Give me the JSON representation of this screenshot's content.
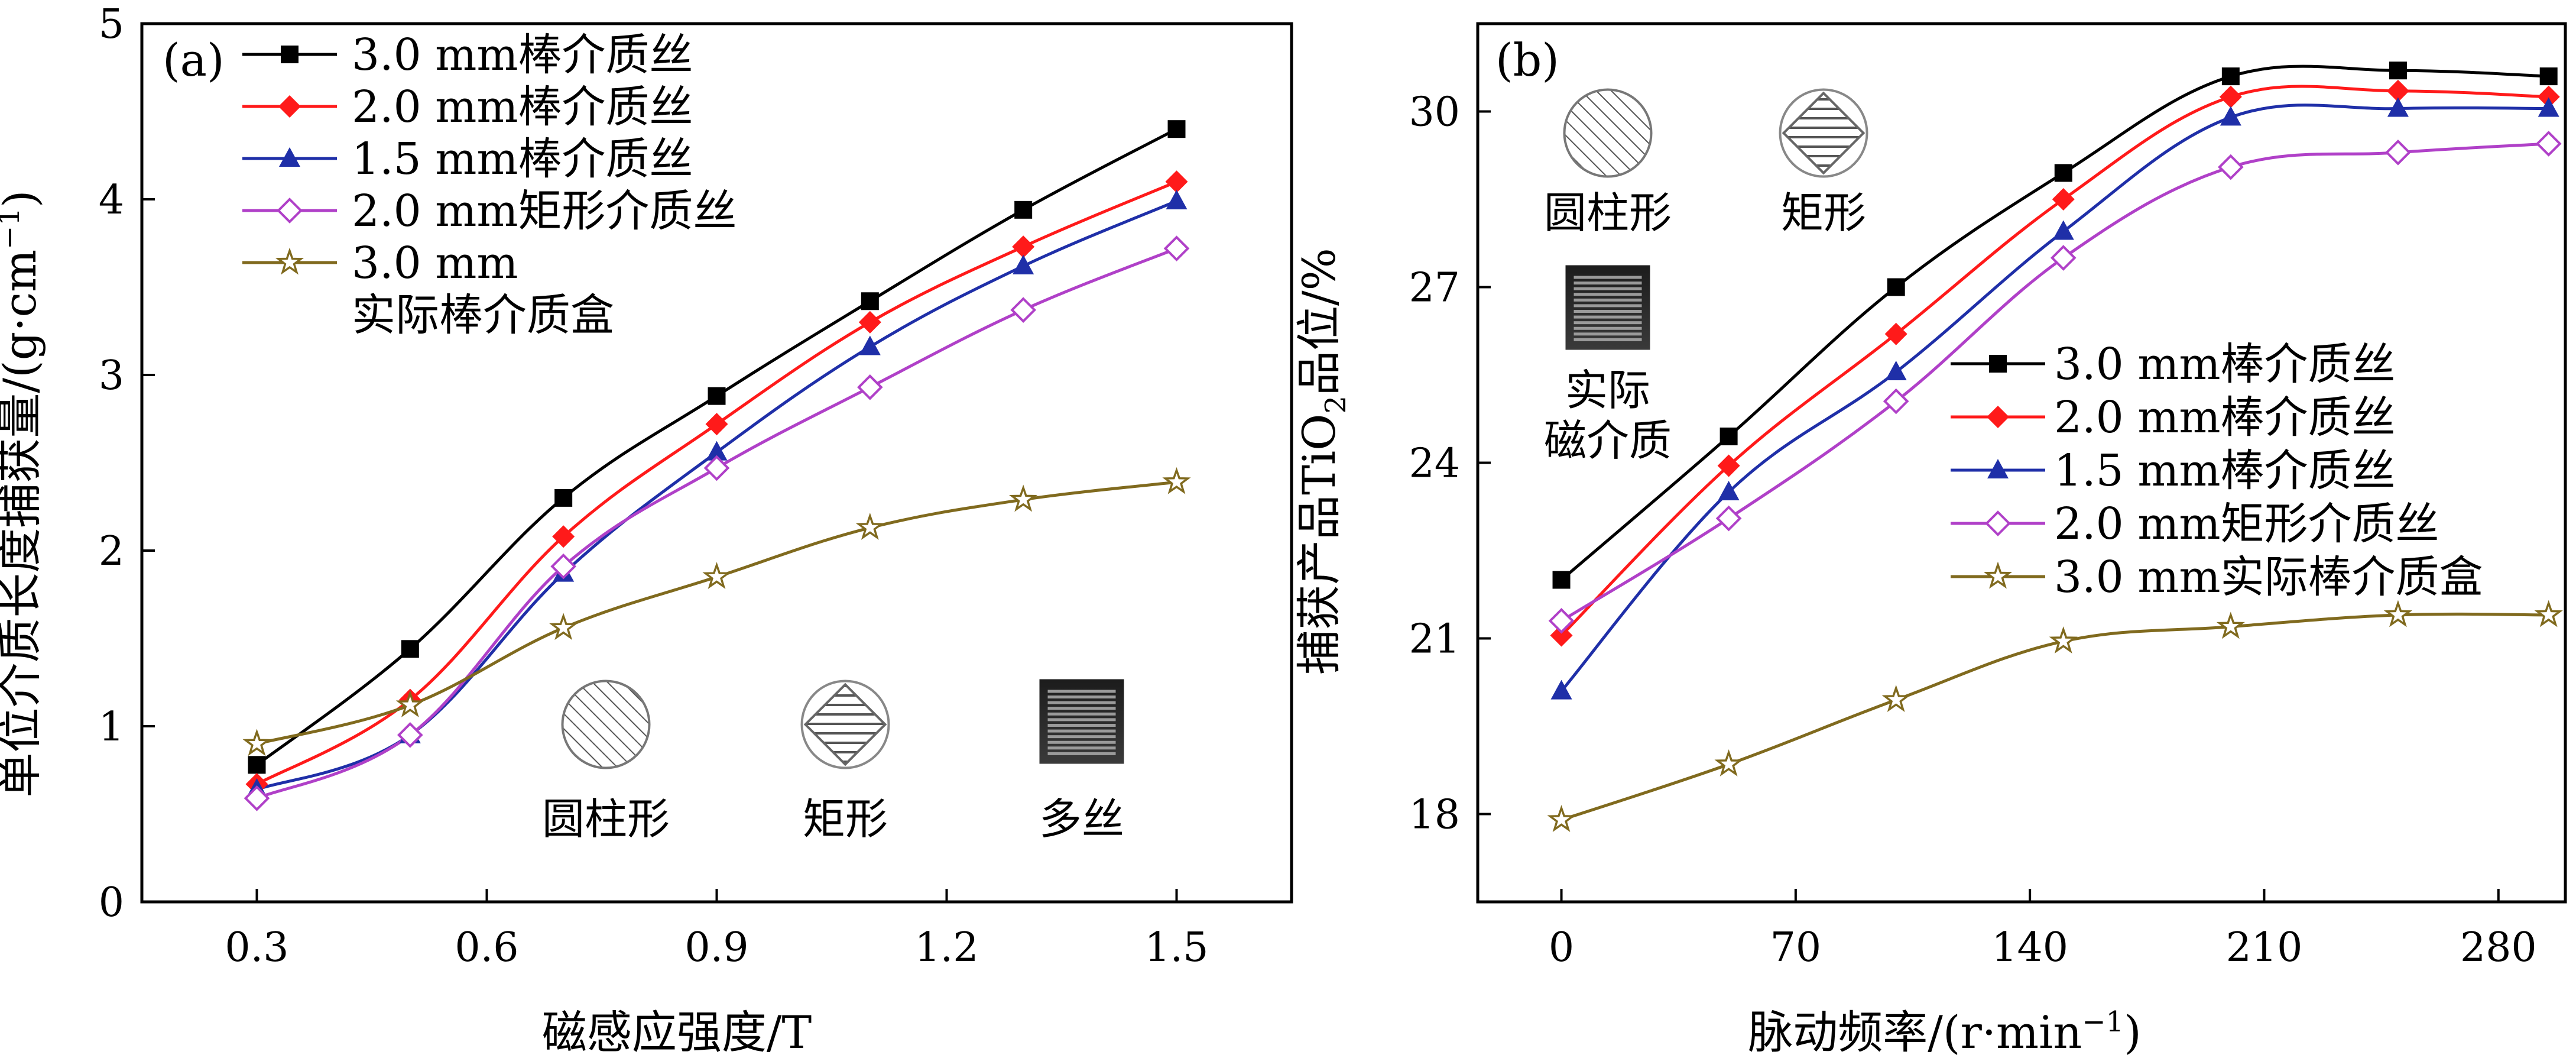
{
  "chart_data": [
    {
      "type": "line",
      "panel_label": "(a)",
      "xlabel": "磁感应强度/T",
      "ylabel": {
        "main": "单位介质长度捕获量/(g·cm",
        "sup": "−1",
        "close": ")"
      },
      "xlim": [
        0.15,
        1.65
      ],
      "ylim": [
        0,
        5
      ],
      "x_ticks": [
        0.3,
        0.6,
        0.9,
        1.2,
        1.5
      ],
      "x_tick_labels": [
        "0.3",
        "0.6",
        "0.9",
        "1.2",
        "1.5"
      ],
      "y_ticks": [
        0,
        1,
        2,
        3,
        4,
        5
      ],
      "y_tick_labels": [
        "0",
        "1",
        "2",
        "3",
        "4",
        "5"
      ],
      "x": [
        0.3,
        0.5,
        0.7,
        0.9,
        1.1,
        1.3,
        1.5
      ],
      "series": [
        {
          "name": "3.0 mm棒介质丝",
          "color": "#000000",
          "marker": "square",
          "values": [
            0.78,
            1.44,
            2.3,
            2.88,
            3.42,
            3.94,
            4.4
          ]
        },
        {
          "name": "2.0 mm棒介质丝",
          "color": "#ff1a1a",
          "marker": "diamond",
          "values": [
            0.67,
            1.15,
            2.08,
            2.72,
            3.3,
            3.73,
            4.1
          ]
        },
        {
          "name": "1.5 mm棒介质丝",
          "color": "#1f2fa8",
          "marker": "triangle",
          "values": [
            0.64,
            0.95,
            1.87,
            2.56,
            3.16,
            3.62,
            3.99
          ]
        },
        {
          "name": "2.0 mm矩形介质丝",
          "color": "#b040c8",
          "marker": "diamond-open",
          "values": [
            0.59,
            0.95,
            1.91,
            2.47,
            2.93,
            3.37,
            3.72
          ]
        },
        {
          "name": "3.0 mm实际棒介质盒",
          "legend_lines": [
            "3.0 mm",
            "实际棒介质盒"
          ],
          "color": "#806a1e",
          "marker": "star-open",
          "values": [
            0.9,
            1.12,
            1.56,
            1.85,
            2.13,
            2.29,
            2.39
          ]
        }
      ],
      "insets": [
        {
          "kind": "cylinder",
          "label": "圆柱形"
        },
        {
          "kind": "rect",
          "label": "矩形"
        },
        {
          "kind": "multi",
          "label": "多丝"
        }
      ]
    },
    {
      "type": "line",
      "panel_label": "(b)",
      "xlabel": {
        "main": "脉动频率/(r·min",
        "sup": "−1",
        "close": ")"
      },
      "ylabel": {
        "main": "捕获产品TiO",
        "sub": "2",
        "rest": "品位/%"
      },
      "xlim": [
        -25,
        300
      ],
      "ylim": [
        16.5,
        31.5
      ],
      "x_ticks": [
        0,
        70,
        140,
        210,
        280
      ],
      "x_tick_labels": [
        "0",
        "70",
        "140",
        "210",
        "280"
      ],
      "y_ticks": [
        18,
        21,
        24,
        27,
        30
      ],
      "y_tick_labels": [
        "18",
        "21",
        "24",
        "27",
        "30"
      ],
      "x": [
        0,
        50,
        100,
        150,
        200,
        250,
        295
      ],
      "series": [
        {
          "name": "3.0 mm棒介质丝",
          "color": "#000000",
          "marker": "square",
          "values": [
            22.0,
            24.45,
            27.0,
            28.95,
            30.6,
            30.7,
            30.6
          ]
        },
        {
          "name": "2.0 mm棒介质丝",
          "color": "#ff1a1a",
          "marker": "diamond",
          "values": [
            21.05,
            23.95,
            26.2,
            28.5,
            30.25,
            30.35,
            30.25
          ]
        },
        {
          "name": "1.5 mm棒介质丝",
          "color": "#1f2fa8",
          "marker": "triangle",
          "values": [
            20.1,
            23.5,
            25.55,
            27.95,
            29.9,
            30.05,
            30.05
          ]
        },
        {
          "name": "2.0 mm矩形介质丝",
          "color": "#b040c8",
          "marker": "diamond-open",
          "values": [
            21.3,
            23.05,
            25.05,
            27.5,
            29.05,
            29.3,
            29.45
          ]
        },
        {
          "name": "3.0 mm实际棒介质盒",
          "legend_lines": [
            "3.0 mm实际棒介质盒"
          ],
          "color": "#806a1e",
          "marker": "star-open",
          "values": [
            17.9,
            18.85,
            19.95,
            20.95,
            21.2,
            21.4,
            21.4
          ]
        }
      ],
      "insets": [
        {
          "kind": "cylinder",
          "label": "圆柱形"
        },
        {
          "kind": "rect",
          "label": "矩形"
        },
        {
          "kind": "multi",
          "label_lines": [
            "实际",
            "磁介质"
          ]
        }
      ]
    }
  ]
}
